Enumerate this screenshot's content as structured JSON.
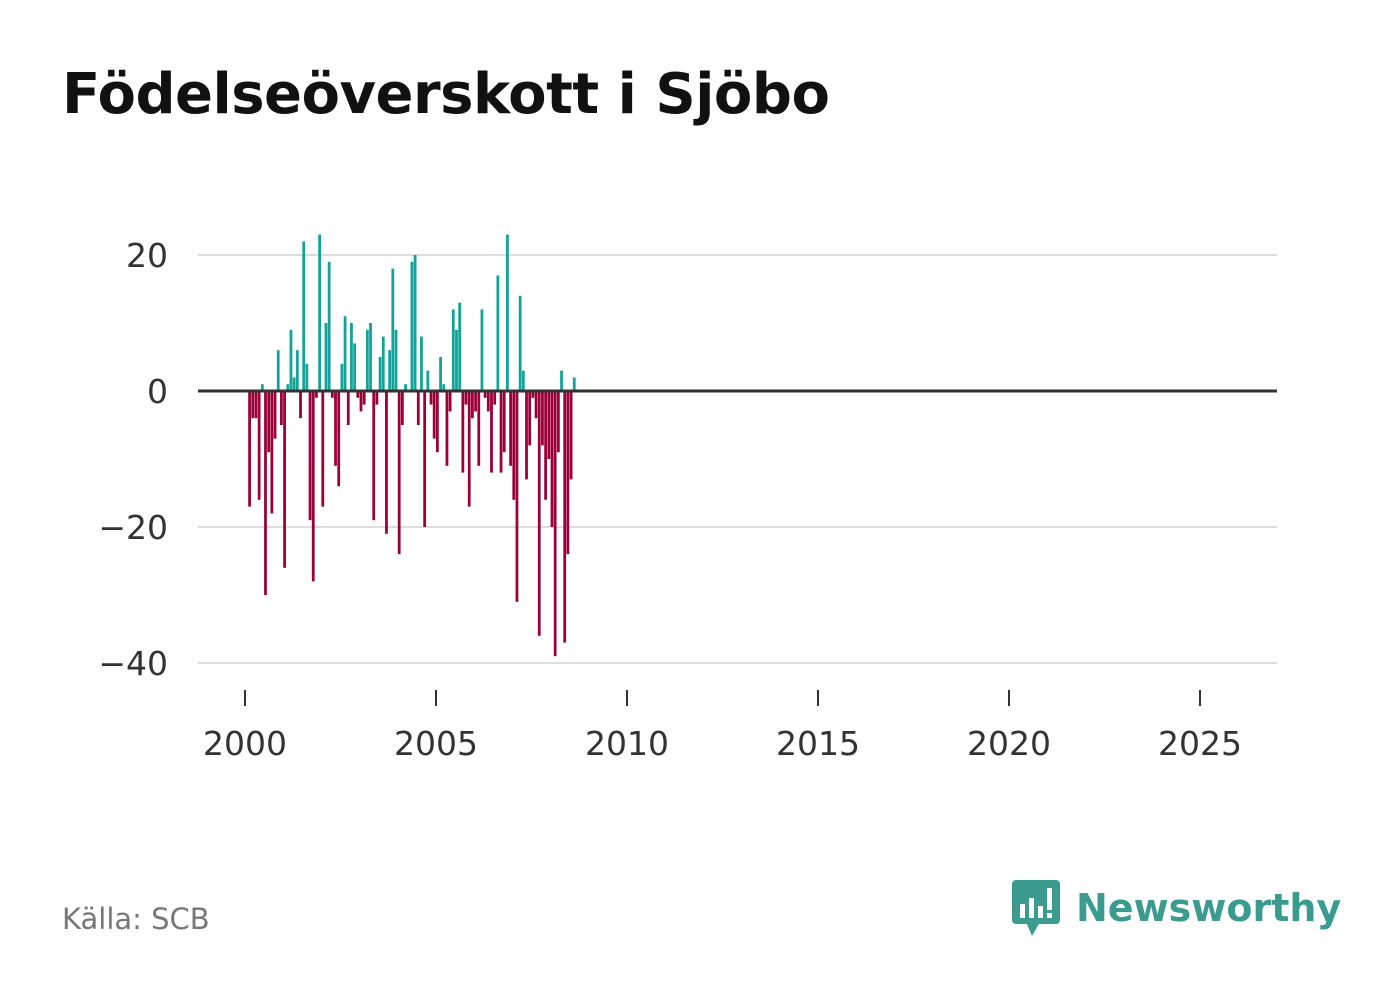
{
  "title": "Födelseöverskott i Sjöbo",
  "source": "Källa: SCB",
  "brand": {
    "name": "Newsworthy",
    "icon": "newsworthy-logo-icon"
  },
  "colors": {
    "positive": "#12a399",
    "negative": "#9b0039",
    "grid": "#dddddd",
    "zero": "#333333",
    "brand": "#3b9b8f"
  },
  "chart_data": {
    "type": "bar",
    "title": "Födelseöverskott i Sjöbo",
    "xlabel": "",
    "ylabel": "",
    "frequency": "monthly",
    "x_start": 2000.0,
    "x_step": 0.08333,
    "xlim": [
      1999.5,
      2027.0
    ],
    "ylim": [
      -42,
      27
    ],
    "xticks": [
      2000,
      2005,
      2010,
      2015,
      2020,
      2025
    ],
    "xtick_labels": [
      "2000",
      "2005",
      "2010",
      "2015",
      "2020",
      "2025"
    ],
    "yticks": [
      20,
      0,
      -20,
      -40
    ],
    "ytick_labels": [
      "20",
      "0",
      "−20",
      "−40"
    ],
    "grid": true,
    "values": [
      0,
      -17,
      -4,
      -4,
      -16,
      1,
      -30,
      -9,
      -18,
      -7,
      6,
      -5,
      -26,
      1,
      9,
      2,
      6,
      -4,
      22,
      4,
      -19,
      -28,
      -1,
      23,
      -17,
      10,
      19,
      -1,
      -11,
      -14,
      4,
      11,
      -5,
      10,
      7,
      -1,
      -3,
      -2,
      9,
      10,
      -19,
      -2,
      5,
      8,
      -21,
      6,
      18,
      9,
      -24,
      -5,
      1,
      0,
      19,
      20,
      -5,
      8,
      -20,
      3,
      -2,
      -7,
      -9,
      5,
      1,
      -11,
      -3,
      12,
      9,
      13,
      -12,
      -2,
      -17,
      -4,
      -3,
      -11,
      12,
      -1,
      -3,
      -12,
      -2,
      17,
      -12,
      -9,
      23,
      -11,
      -16,
      -31,
      14,
      3,
      -13,
      -8,
      -1,
      -4,
      -36,
      -8,
      -16,
      -10,
      -20,
      -39,
      -9,
      3,
      -37,
      -24,
      -13,
      2
    ]
  }
}
